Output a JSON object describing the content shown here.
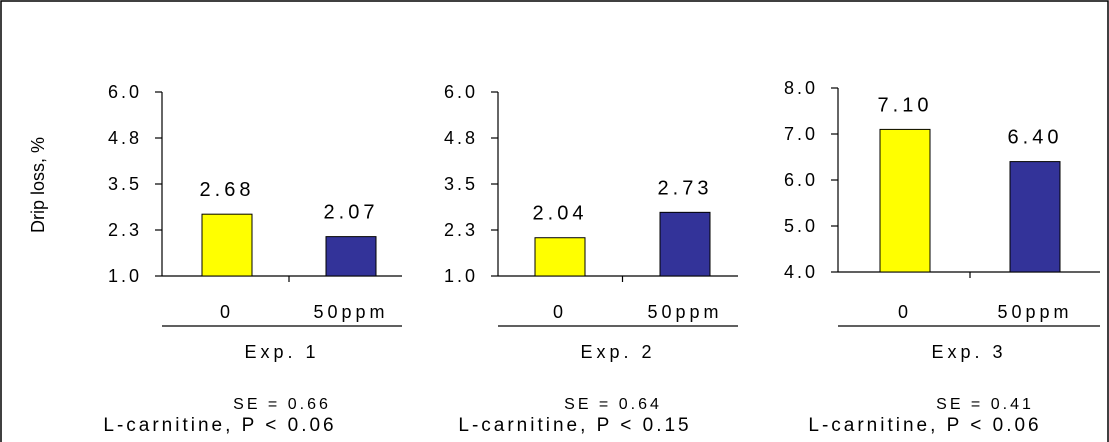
{
  "ylabel": "Drip loss, %",
  "colors": {
    "bar_0": "#ffff00",
    "bar_50ppm": "#333399",
    "axis": "#000000"
  },
  "chart_data": [
    {
      "type": "bar",
      "categories": [
        "0",
        "50ppm"
      ],
      "values": [
        2.68,
        2.07
      ],
      "value_labels": [
        "2.68",
        "2.07"
      ],
      "ylim": [
        1.0,
        6.0
      ],
      "yticks": [
        "1.0",
        "2.3",
        "3.5",
        "4.8",
        "6.0"
      ],
      "xlabel": "Exp. 1",
      "se": "SE = 0.66",
      "stat": "L-carnitine, P < 0.06"
    },
    {
      "type": "bar",
      "categories": [
        "0",
        "50ppm"
      ],
      "values": [
        2.04,
        2.73
      ],
      "value_labels": [
        "2.04",
        "2.73"
      ],
      "ylim": [
        1.0,
        6.0
      ],
      "yticks": [
        "1.0",
        "2.3",
        "3.5",
        "4.8",
        "6.0"
      ],
      "xlabel": "Exp. 2",
      "se": "SE = 0.64",
      "stat": "L-carnitine, P < 0.15"
    },
    {
      "type": "bar",
      "categories": [
        "0",
        "50ppm"
      ],
      "values": [
        7.1,
        6.4
      ],
      "value_labels": [
        "7.10",
        "6.40"
      ],
      "ylim": [
        4.0,
        8.0
      ],
      "yticks": [
        "4.0",
        "5.0",
        "6.0",
        "7.0",
        "8.0"
      ],
      "xlabel": "Exp. 3",
      "se": "SE = 0.41",
      "stat": "L-carnitine, P < 0.06"
    }
  ]
}
